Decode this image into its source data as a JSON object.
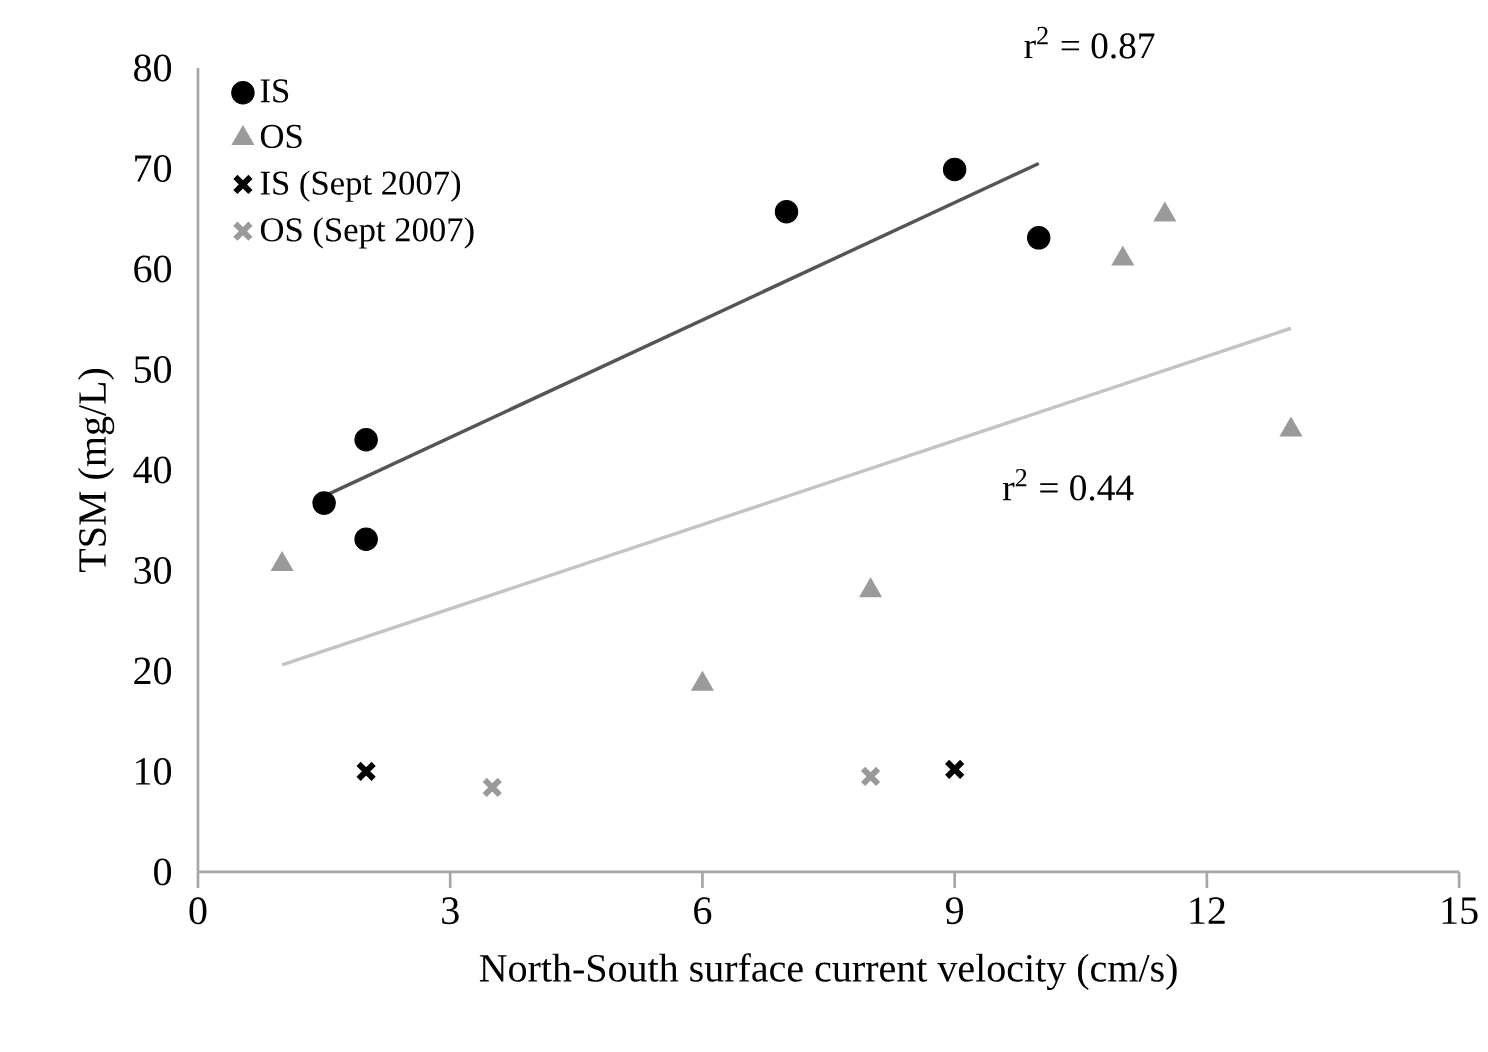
{
  "chart_data": {
    "type": "scatter",
    "xlabel": "North-South surface current velocity (cm/s)",
    "ylabel": "TSM (mg/L)",
    "xlim": [
      0,
      15
    ],
    "xticks": [
      0,
      3,
      6,
      9,
      12,
      15
    ],
    "ylim": [
      0,
      80
    ],
    "yticks": [
      0,
      10,
      20,
      30,
      40,
      50,
      60,
      70,
      80
    ],
    "grid": false,
    "legend": "top left",
    "series": [
      {
        "name": "IS",
        "color": "#000000",
        "marker": "circle",
        "x": [
          1.5,
          2,
          2,
          7,
          9,
          10
        ],
        "values": [
          36.7,
          43,
          33.1,
          65.7,
          69.9,
          63.1
        ]
      },
      {
        "name": "OS",
        "color": "#9a9a9a",
        "marker": "triangle",
        "x": [
          1,
          6,
          8,
          11,
          11.5,
          13
        ],
        "values": [
          30.6,
          18.7,
          28,
          61,
          65.4,
          44
        ]
      },
      {
        "name": "IS (Sept 2007)",
        "color": "#000000",
        "marker": "cross",
        "x": [
          2,
          9
        ],
        "values": [
          10,
          10.2
        ]
      },
      {
        "name": "OS (Sept 2007)",
        "color": "#9a9a9a",
        "marker": "cross",
        "x": [
          3.5,
          8
        ],
        "values": [
          8.4,
          9.5
        ]
      },
      {
        "type": "line",
        "color": "#555555",
        "marker": "none",
        "x": [
          1.5,
          10
        ],
        "values": [
          37.4,
          70.5
        ]
      },
      {
        "type": "line",
        "color": "#c4c4c4",
        "marker": "none",
        "x": [
          1,
          13
        ],
        "values": [
          20.6,
          54.1
        ]
      }
    ],
    "annotations": [
      "r$^{2}$ = 0.87",
      "r$^{2}$ = 0.44"
    ]
  }
}
